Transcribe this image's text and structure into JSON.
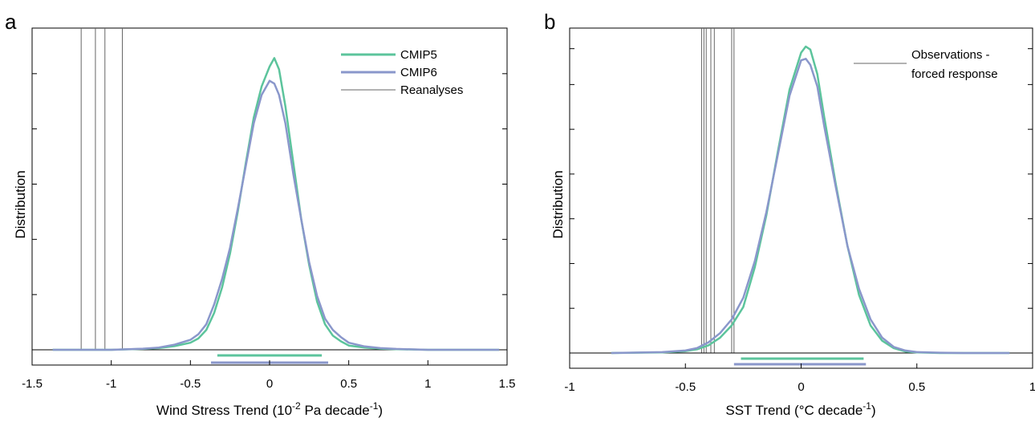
{
  "colors": {
    "cmip5": "#5cc49c",
    "cmip6": "#8a97cb",
    "reanalyses": "#666666",
    "axis": "#000000"
  },
  "chart_data": [
    {
      "type": "line",
      "panel_label": "a",
      "xlabel_main": "Wind Stress Trend (10",
      "xlabel_sup1": "-2",
      "xlabel_mid": " Pa decade",
      "xlabel_sup2": "-1",
      "xlabel_end": ")",
      "ylabel": "Distribution",
      "xlim": [
        -1.5,
        1.5
      ],
      "ylim": [
        0,
        1
      ],
      "xticks": [
        -1.5,
        -1,
        -0.5,
        0,
        0.5,
        1,
        1.5
      ],
      "xtick_labels": [
        "-1.5",
        "-1",
        "-0.5",
        "0",
        "0.5",
        "1",
        "1.5"
      ],
      "yticks": [
        0.195,
        0.39,
        0.585,
        0.78,
        0.975
      ],
      "legend": {
        "position": "top-right",
        "entries": [
          "CMIP5",
          "CMIP6",
          "Reanalyses"
        ]
      },
      "series": [
        {
          "name": "CMIP5",
          "x": [
            -1.37,
            -1.0,
            -0.8,
            -0.7,
            -0.6,
            -0.5,
            -0.45,
            -0.4,
            -0.35,
            -0.3,
            -0.25,
            -0.2,
            -0.15,
            -0.1,
            -0.05,
            0.0,
            0.03,
            0.06,
            0.1,
            0.15,
            0.2,
            0.25,
            0.3,
            0.35,
            0.4,
            0.45,
            0.5,
            0.6,
            0.7,
            0.8,
            1.0,
            1.45
          ],
          "y": [
            0,
            0,
            0.003,
            0.006,
            0.013,
            0.025,
            0.04,
            0.07,
            0.13,
            0.22,
            0.34,
            0.49,
            0.66,
            0.82,
            0.93,
            1.0,
            1.03,
            0.99,
            0.86,
            0.66,
            0.46,
            0.3,
            0.17,
            0.09,
            0.05,
            0.03,
            0.015,
            0.008,
            0.004,
            0.002,
            0,
            0
          ]
        },
        {
          "name": "CMIP6",
          "x": [
            -1.37,
            -1.0,
            -0.8,
            -0.7,
            -0.6,
            -0.5,
            -0.45,
            -0.4,
            -0.35,
            -0.3,
            -0.25,
            -0.2,
            -0.15,
            -0.1,
            -0.05,
            0.0,
            0.03,
            0.06,
            0.1,
            0.15,
            0.2,
            0.25,
            0.3,
            0.35,
            0.4,
            0.45,
            0.5,
            0.6,
            0.7,
            0.8,
            1.0,
            1.45
          ],
          "y": [
            0,
            0,
            0.004,
            0.008,
            0.018,
            0.035,
            0.055,
            0.09,
            0.16,
            0.25,
            0.36,
            0.5,
            0.65,
            0.8,
            0.9,
            0.95,
            0.94,
            0.9,
            0.8,
            0.62,
            0.46,
            0.31,
            0.19,
            0.11,
            0.07,
            0.045,
            0.025,
            0.012,
            0.006,
            0.003,
            0,
            0
          ]
        }
      ],
      "reference_lines_x": [
        -1.19,
        -1.1,
        -1.04,
        -0.93
      ],
      "ranges": [
        {
          "series": "CMIP5",
          "from": -0.33,
          "to": 0.33
        },
        {
          "series": "CMIP6",
          "from": -0.37,
          "to": 0.37
        }
      ]
    },
    {
      "type": "line",
      "panel_label": "b",
      "xlabel_main": "SST Trend (°C decade",
      "xlabel_sup1": "-1",
      "xlabel_end": ")",
      "ylabel": "Distribution",
      "xlim": [
        -1,
        1
      ],
      "ylim": [
        0,
        1
      ],
      "xticks": [
        -1,
        -0.5,
        0,
        0.5,
        1
      ],
      "xtick_labels": [
        "-1",
        "-0.5",
        "0",
        "0.5",
        "1"
      ],
      "yticks": [
        0.146,
        0.292,
        0.438,
        0.584,
        0.73,
        0.876,
        0.993
      ],
      "legend": {
        "position": "top-right",
        "entries": [
          "Observations -",
          "forced response"
        ]
      },
      "series": [
        {
          "name": "CMIP5",
          "x": [
            -0.82,
            -0.6,
            -0.5,
            -0.45,
            -0.4,
            -0.35,
            -0.3,
            -0.25,
            -0.2,
            -0.15,
            -0.1,
            -0.05,
            0.0,
            0.02,
            0.04,
            0.07,
            0.1,
            0.15,
            0.2,
            0.25,
            0.3,
            0.35,
            0.4,
            0.45,
            0.5,
            0.6,
            0.7,
            0.9
          ],
          "y": [
            0,
            0.002,
            0.006,
            0.012,
            0.025,
            0.05,
            0.09,
            0.15,
            0.28,
            0.45,
            0.66,
            0.86,
            0.98,
            1.0,
            0.99,
            0.91,
            0.77,
            0.55,
            0.35,
            0.19,
            0.09,
            0.04,
            0.016,
            0.005,
            0.002,
            0,
            0,
            0
          ]
        },
        {
          "name": "CMIP6",
          "x": [
            -0.82,
            -0.6,
            -0.5,
            -0.45,
            -0.4,
            -0.35,
            -0.3,
            -0.25,
            -0.2,
            -0.15,
            -0.1,
            -0.05,
            0.0,
            0.02,
            0.04,
            0.07,
            0.1,
            0.15,
            0.2,
            0.25,
            0.3,
            0.35,
            0.4,
            0.45,
            0.5,
            0.6,
            0.7,
            0.9
          ],
          "y": [
            0,
            0.003,
            0.008,
            0.016,
            0.035,
            0.065,
            0.11,
            0.18,
            0.3,
            0.46,
            0.65,
            0.84,
            0.955,
            0.96,
            0.94,
            0.87,
            0.74,
            0.54,
            0.35,
            0.21,
            0.11,
            0.05,
            0.02,
            0.008,
            0.003,
            0.001,
            0,
            0
          ]
        }
      ],
      "reference_lines_x": [
        -0.43,
        -0.42,
        -0.41,
        -0.39,
        -0.375,
        -0.3,
        -0.29
      ],
      "ranges": [
        {
          "series": "CMIP5",
          "from": -0.26,
          "to": 0.27
        },
        {
          "series": "CMIP6",
          "from": -0.29,
          "to": 0.28
        }
      ]
    }
  ]
}
